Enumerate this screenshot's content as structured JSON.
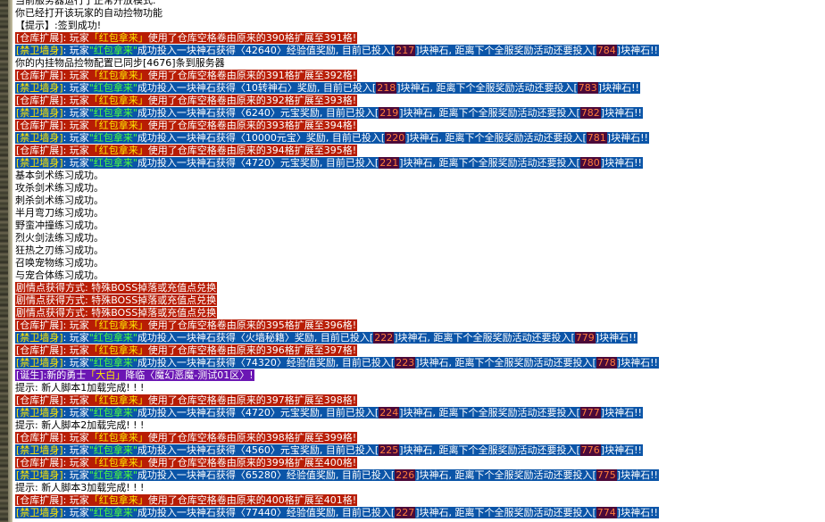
{
  "log_lines": [
    {
      "style": "plain",
      "parts": [
        {
          "t": "当前服务器运行于正常开放模式."
        }
      ]
    },
    {
      "style": "plain",
      "parts": [
        {
          "t": "你已经打开该玩家的自动捡物功能"
        }
      ]
    },
    {
      "style": "plain",
      "parts": [
        {
          "t": "【提示】:签到成功!"
        }
      ]
    },
    {
      "style": "red",
      "parts": [
        {
          "t": "[仓库扩展]: 玩家"
        },
        {
          "t": "「红包拿来」",
          "c": "yellow"
        },
        {
          "t": "使用了仓库空格卷由原来的390格扩展至391格!"
        }
      ]
    },
    {
      "style": "blue",
      "parts": [
        {
          "t": "[",
          "c": "yellow"
        },
        {
          "t": "禁卫墙身",
          "c": "yellow"
        },
        {
          "t": "]",
          "c": "yellow"
        },
        {
          "t": ": 玩家"
        },
        {
          "t": "\"红包拿来\"",
          "c": "green"
        },
        {
          "t": "成功投入一块神石获得〈42640〉经验值奖励, 目前已投入["
        },
        {
          "t": "217",
          "c": "num"
        },
        {
          "t": "]块神石, 距离下个全服奖励活动还要投入["
        },
        {
          "t": "784",
          "c": "num"
        },
        {
          "t": "]块神石!!"
        }
      ]
    },
    {
      "style": "plain",
      "parts": [
        {
          "t": "你的内挂物品捡物配置已同步[4676]条到服务器"
        }
      ]
    },
    {
      "style": "red",
      "parts": [
        {
          "t": "[仓库扩展]: 玩家"
        },
        {
          "t": "「红包拿来」",
          "c": "yellow"
        },
        {
          "t": "使用了仓库空格卷由原来的391格扩展至392格!"
        }
      ]
    },
    {
      "style": "blue",
      "parts": [
        {
          "t": "[禁卫墙身]",
          "c": "yellow"
        },
        {
          "t": ": 玩家"
        },
        {
          "t": "\"红包拿来\"",
          "c": "green"
        },
        {
          "t": "成功投入一块神石获得〈10转神石〉奖励, 目前已投入["
        },
        {
          "t": "218",
          "c": "num"
        },
        {
          "t": "]块神石, 距离下个全服奖励活动还要投入["
        },
        {
          "t": "783",
          "c": "num"
        },
        {
          "t": "]块神石!!"
        }
      ]
    },
    {
      "style": "red",
      "parts": [
        {
          "t": "[仓库扩展]: 玩家"
        },
        {
          "t": "「红包拿来」",
          "c": "yellow"
        },
        {
          "t": "使用了仓库空格卷由原来的392格扩展至393格!"
        }
      ]
    },
    {
      "style": "blue",
      "parts": [
        {
          "t": "[禁卫墙身]",
          "c": "yellow"
        },
        {
          "t": ": 玩家"
        },
        {
          "t": "\"红包拿来\"",
          "c": "green"
        },
        {
          "t": "成功投入一块神石获得〈6240〉元宝奖励, 目前已投入["
        },
        {
          "t": "219",
          "c": "num"
        },
        {
          "t": "]块神石, 距离下个全服奖励活动还要投入["
        },
        {
          "t": "782",
          "c": "num"
        },
        {
          "t": "]块神石!!"
        }
      ]
    },
    {
      "style": "red",
      "parts": [
        {
          "t": "[仓库扩展]: 玩家"
        },
        {
          "t": "「红包拿来」",
          "c": "yellow"
        },
        {
          "t": "使用了仓库空格卷由原来的393格扩展至394格!"
        }
      ]
    },
    {
      "style": "blue",
      "parts": [
        {
          "t": "[禁卫墙身]",
          "c": "yellow"
        },
        {
          "t": ": 玩家"
        },
        {
          "t": "\"红包拿来\"",
          "c": "green"
        },
        {
          "t": "成功投入一块神石获得〈10000元宝〉奖励, 目前已投入["
        },
        {
          "t": "220",
          "c": "num"
        },
        {
          "t": "]块神石, 距离下个全服奖励活动还要投入["
        },
        {
          "t": "781",
          "c": "num"
        },
        {
          "t": "]块神石!!"
        }
      ]
    },
    {
      "style": "red",
      "parts": [
        {
          "t": "[仓库扩展]: 玩家"
        },
        {
          "t": "「红包拿来」",
          "c": "yellow"
        },
        {
          "t": "使用了仓库空格卷由原来的394格扩展至395格!"
        }
      ]
    },
    {
      "style": "blue",
      "parts": [
        {
          "t": "[禁卫墙身]",
          "c": "yellow"
        },
        {
          "t": ": 玩家"
        },
        {
          "t": "\"红包拿来\"",
          "c": "green"
        },
        {
          "t": "成功投入一块神石获得〈4720〉元宝奖励, 目前已投入["
        },
        {
          "t": "221",
          "c": "num"
        },
        {
          "t": "]块神石, 距离下个全服奖励活动还要投入["
        },
        {
          "t": "780",
          "c": "num"
        },
        {
          "t": "]块神石!!"
        }
      ]
    },
    {
      "style": "plain",
      "parts": [
        {
          "t": "基本剑术练习成功。"
        }
      ]
    },
    {
      "style": "plain",
      "parts": [
        {
          "t": "攻杀剑术练习成功。"
        }
      ]
    },
    {
      "style": "plain",
      "parts": [
        {
          "t": "刺杀剑术练习成功。"
        }
      ]
    },
    {
      "style": "plain",
      "parts": [
        {
          "t": "半月弯刀练习成功。"
        }
      ]
    },
    {
      "style": "plain",
      "parts": [
        {
          "t": "野蛮冲撞练习成功。"
        }
      ]
    },
    {
      "style": "plain",
      "parts": [
        {
          "t": "烈火剑法练习成功。"
        }
      ]
    },
    {
      "style": "plain",
      "parts": [
        {
          "t": "狂热之刃练习成功。"
        }
      ]
    },
    {
      "style": "plain",
      "parts": [
        {
          "t": "召唤宠物练习成功。"
        }
      ]
    },
    {
      "style": "plain",
      "parts": [
        {
          "t": "与宠合体练习成功。"
        }
      ]
    },
    {
      "style": "red",
      "parts": [
        {
          "t": "剧情点获得方式: 特殊BOSS掉落或充值点兑换"
        }
      ]
    },
    {
      "style": "red",
      "parts": [
        {
          "t": "剧情点获得方式: 特殊BOSS掉落或充值点兑换"
        }
      ]
    },
    {
      "style": "red",
      "parts": [
        {
          "t": "剧情点获得方式: 特殊BOSS掉落或充值点兑换"
        }
      ]
    },
    {
      "style": "red",
      "parts": [
        {
          "t": "[仓库扩展]: 玩家"
        },
        {
          "t": "「红包拿来」",
          "c": "yellow"
        },
        {
          "t": "使用了仓库空格卷由原来的395格扩展至396格!"
        }
      ]
    },
    {
      "style": "blue",
      "parts": [
        {
          "t": "[禁卫墙身]",
          "c": "yellow"
        },
        {
          "t": ": 玩家"
        },
        {
          "t": "\"红包拿来\"",
          "c": "green"
        },
        {
          "t": "成功投入一块神石获得〈火墙秘籍〉奖励, 目前已投入["
        },
        {
          "t": "222",
          "c": "num"
        },
        {
          "t": "]块神石, 距离下个全服奖励活动还要投入["
        },
        {
          "t": "779",
          "c": "num"
        },
        {
          "t": "]块神石!!"
        }
      ]
    },
    {
      "style": "red",
      "parts": [
        {
          "t": "[仓库扩展]: 玩家"
        },
        {
          "t": "「红包拿来」",
          "c": "yellow"
        },
        {
          "t": "使用了仓库空格卷由原来的396格扩展至397格!"
        }
      ]
    },
    {
      "style": "blue",
      "parts": [
        {
          "t": "[禁卫墙身]",
          "c": "yellow"
        },
        {
          "t": ": 玩家"
        },
        {
          "t": "\"红包拿来\"",
          "c": "green"
        },
        {
          "t": "成功投入一块神石获得〈74320〉经验值奖励, 目前已投入["
        },
        {
          "t": "223",
          "c": "num"
        },
        {
          "t": "]块神石, 距离下个全服奖励活动还要投入["
        },
        {
          "t": "778",
          "c": "num"
        },
        {
          "t": "]块神石!!"
        }
      ]
    },
    {
      "style": "purple",
      "parts": [
        {
          "t": "[诞生]:新的勇士"
        },
        {
          "t": "「大白」",
          "c": "yellow"
        },
        {
          "t": "降临〈魔幻恶魔-测试01区〉!"
        }
      ]
    },
    {
      "style": "plain",
      "parts": [
        {
          "t": "提示: 新人脚本1加载完成! ! !"
        }
      ]
    },
    {
      "style": "red",
      "parts": [
        {
          "t": "[仓库扩展]: 玩家"
        },
        {
          "t": "「红包拿来」",
          "c": "yellow"
        },
        {
          "t": "使用了仓库空格卷由原来的397格扩展至398格!"
        }
      ]
    },
    {
      "style": "blue",
      "parts": [
        {
          "t": "[禁卫墙身]",
          "c": "yellow"
        },
        {
          "t": ": 玩家"
        },
        {
          "t": "\"红包拿来\"",
          "c": "green"
        },
        {
          "t": "成功投入一块神石获得〈4720〉元宝奖励, 目前已投入["
        },
        {
          "t": "224",
          "c": "num"
        },
        {
          "t": "]块神石, 距离下个全服奖励活动还要投入["
        },
        {
          "t": "777",
          "c": "num"
        },
        {
          "t": "]块神石!!"
        }
      ]
    },
    {
      "style": "plain",
      "parts": [
        {
          "t": "提示: 新人脚本2加载完成! ! !"
        }
      ]
    },
    {
      "style": "red",
      "parts": [
        {
          "t": "[仓库扩展]: 玩家"
        },
        {
          "t": "「红包拿来」",
          "c": "yellow"
        },
        {
          "t": "使用了仓库空格卷由原来的398格扩展至399格!"
        }
      ]
    },
    {
      "style": "blue",
      "parts": [
        {
          "t": "[禁卫墙身]",
          "c": "yellow"
        },
        {
          "t": ": 玩家"
        },
        {
          "t": "\"红包拿来\"",
          "c": "green"
        },
        {
          "t": "成功投入一块神石获得〈4560〉元宝奖励, 目前已投入["
        },
        {
          "t": "225",
          "c": "num"
        },
        {
          "t": "]块神石, 距离下个全服奖励活动还要投入["
        },
        {
          "t": "776",
          "c": "num"
        },
        {
          "t": "]块神石!!"
        }
      ]
    },
    {
      "style": "red",
      "parts": [
        {
          "t": "[仓库扩展]: 玩家"
        },
        {
          "t": "「红包拿来」",
          "c": "yellow"
        },
        {
          "t": "使用了仓库空格卷由原来的399格扩展至400格!"
        }
      ]
    },
    {
      "style": "blue",
      "parts": [
        {
          "t": "[禁卫墙身]",
          "c": "yellow"
        },
        {
          "t": ": 玩家"
        },
        {
          "t": "\"红包拿来\"",
          "c": "green"
        },
        {
          "t": "成功投入一块神石获得〈65280〉经验值奖励, 目前已投入["
        },
        {
          "t": "226",
          "c": "num"
        },
        {
          "t": "]块神石, 距离下个全服奖励活动还要投入["
        },
        {
          "t": "775",
          "c": "num"
        },
        {
          "t": "]块神石!!"
        }
      ]
    },
    {
      "style": "plain",
      "parts": [
        {
          "t": "提示: 新人脚本3加载完成! ! !"
        }
      ]
    },
    {
      "style": "red",
      "parts": [
        {
          "t": "[仓库扩展]: 玩家"
        },
        {
          "t": "「红包拿来」",
          "c": "yellow"
        },
        {
          "t": "使用了仓库空格卷由原来的400格扩展至401格!"
        }
      ]
    },
    {
      "style": "blue",
      "parts": [
        {
          "t": "[禁卫墙身]",
          "c": "yellow"
        },
        {
          "t": ": 玩家"
        },
        {
          "t": "\"红包拿来\"",
          "c": "green"
        },
        {
          "t": "成功投入一块神石获得〈77440〉经验值奖励, 目前已投入["
        },
        {
          "t": "227",
          "c": "num"
        },
        {
          "t": "]块神石, 距离下个全服奖励活动还要投入["
        },
        {
          "t": "774",
          "c": "num"
        },
        {
          "t": "]块神石!!"
        }
      ]
    }
  ]
}
